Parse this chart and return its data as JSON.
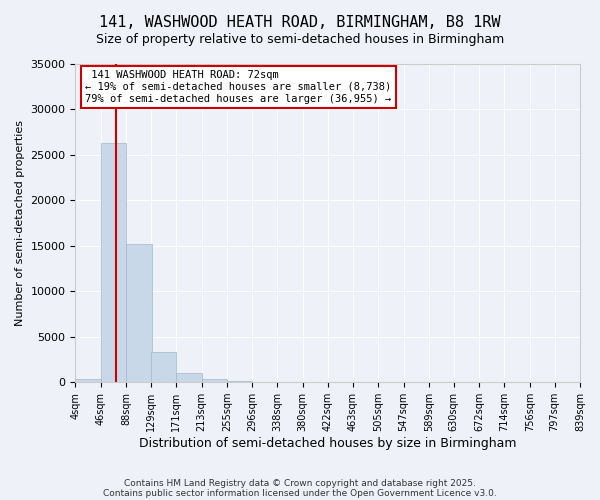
{
  "title": "141, WASHWOOD HEATH ROAD, BIRMINGHAM, B8 1RW",
  "subtitle": "Size of property relative to semi-detached houses in Birmingham",
  "xlabel": "Distribution of semi-detached houses by size in Birmingham",
  "ylabel": "Number of semi-detached properties",
  "property_size": 72,
  "property_label": "141 WASHWOOD HEATH ROAD: 72sqm",
  "pct_smaller": 19,
  "pct_larger": 79,
  "num_smaller": 8738,
  "num_larger": 36955,
  "bin_edges": [
    4,
    46,
    88,
    129,
    171,
    213,
    255,
    296,
    338,
    380,
    422,
    463,
    505,
    547,
    589,
    630,
    672,
    714,
    756,
    797,
    839
  ],
  "bin_labels": [
    "4sqm",
    "46sqm",
    "88sqm",
    "129sqm",
    "171sqm",
    "213sqm",
    "255sqm",
    "296sqm",
    "338sqm",
    "380sqm",
    "422sqm",
    "463sqm",
    "505sqm",
    "547sqm",
    "589sqm",
    "630sqm",
    "672sqm",
    "714sqm",
    "756sqm",
    "797sqm",
    "839sqm"
  ],
  "bar_heights": [
    400,
    26300,
    15200,
    3300,
    1000,
    400,
    150,
    50,
    20,
    10,
    5,
    3,
    2,
    1,
    1,
    0,
    0,
    0,
    0,
    0
  ],
  "bar_color": "#c8d8e8",
  "bar_edge_color": "#a0b8cc",
  "vline_color": "#cc0000",
  "vline_x": 72,
  "box_edge_color": "#cc0000",
  "ylim": [
    0,
    35000
  ],
  "yticks": [
    0,
    5000,
    10000,
    15000,
    20000,
    25000,
    30000,
    35000
  ],
  "background_color": "#eef2f8",
  "footer_line1": "Contains HM Land Registry data © Crown copyright and database right 2025.",
  "footer_line2": "Contains public sector information licensed under the Open Government Licence v3.0."
}
